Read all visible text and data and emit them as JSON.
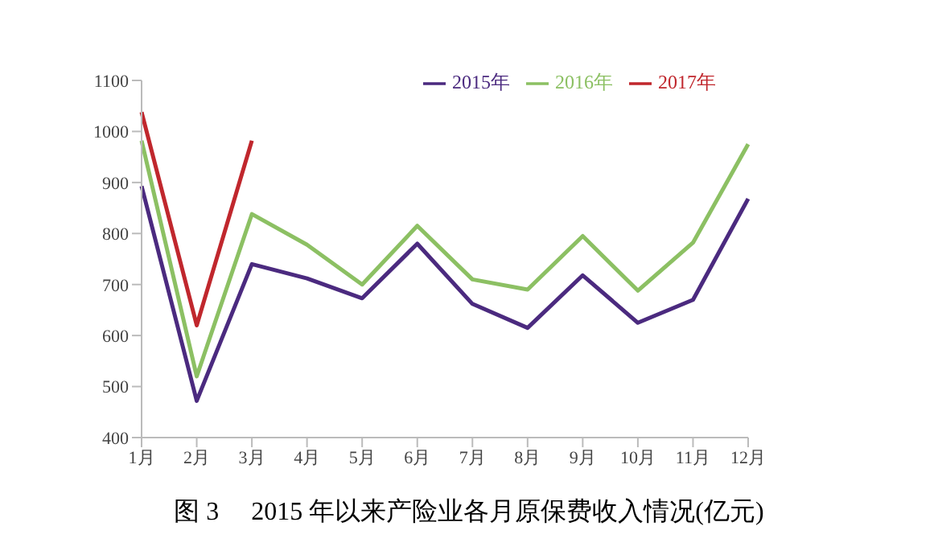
{
  "chart_data": {
    "type": "line",
    "title": "图 3　 2015 年以来产险业各月原保费收入情况(亿元)",
    "categories": [
      "1月",
      "2月",
      "3月",
      "4月",
      "5月",
      "6月",
      "7月",
      "8月",
      "9月",
      "10月",
      "11月",
      "12月"
    ],
    "series": [
      {
        "name": "2015年",
        "color": "#4b2a7f",
        "values": [
          893,
          472,
          740,
          712,
          673,
          780,
          662,
          615,
          718,
          625,
          670,
          868
        ]
      },
      {
        "name": "2016年",
        "color": "#8cc063",
        "values": [
          982,
          520,
          838,
          778,
          700,
          815,
          710,
          690,
          795,
          688,
          782,
          975
        ]
      },
      {
        "name": "2017年",
        "color": "#c0272d",
        "values": [
          1038,
          620,
          982,
          null,
          null,
          null,
          null,
          null,
          null,
          null,
          null,
          null
        ]
      }
    ],
    "ylim": [
      400,
      1100
    ],
    "yticks": [
      400,
      500,
      600,
      700,
      800,
      900,
      1000,
      1100
    ],
    "grid": false,
    "legend": "top right",
    "marker": "none",
    "line_style": "solid"
  }
}
